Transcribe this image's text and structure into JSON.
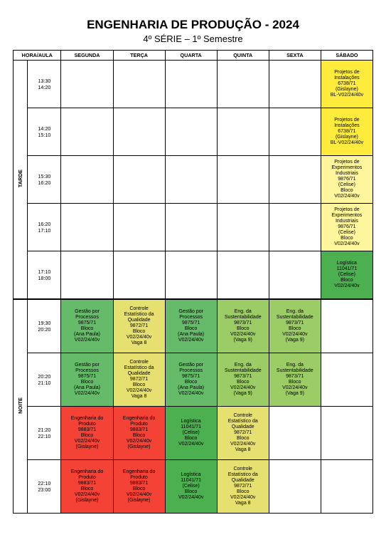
{
  "header": {
    "title": "ENGENHARIA DE PRODUÇÃO - 2024",
    "subtitle": "4º SÉRIE – 1º Semestre"
  },
  "columns": [
    "HORA/AULA",
    "SEGUNDA",
    "TERÇA",
    "QUARTA",
    "QUINTA",
    "SEXTA",
    "SÁBADO"
  ],
  "periods": {
    "tarde": "TARDE",
    "noite": "NOITE"
  },
  "times": {
    "t1": "13:30\n14:20",
    "t2": "14:20\n15:10",
    "t3": "15:30\n16:20",
    "t4": "16:20\n17:10",
    "t5": "17:10\n18:00",
    "n1": "19:30\n20:20",
    "n2": "20:20\n21:10",
    "n3": "21:20\n22:10",
    "n4": "22:10\n23:00"
  },
  "cells": {
    "sab_t1": "Projetos de\nInstalações\n6738/71\n(Gislayne)\nBL-V02/24/40v",
    "sab_t2": "Projetos de\nInstalações\n6738/71\n(Gislayne)\nBL-V02/24/40v",
    "sab_t3": "Projetos de\nExperimentos\nIndustriais\n9876/71\n(Celise)\nBloco\nV02/24/40v",
    "sab_t4": "Projetos de\nExperimentos\nIndustriais\n9876/71\n(Celise)\nBloco\nV02/24/40v",
    "sab_t5": "Logística\n11041/71\n(Celise)\nBloco\nV02/24/40v",
    "seg_n1": "Gestão por\nProcessos\n9875/71\nBloco\n(Ana Paula)\nV02/24/40v",
    "ter_n1": "Controle\nEstatístico da\nQualidade\n9872/71\nBloco\nV02/24/40v\nVaga 8",
    "qua_n1": "Gestão por\nProcessos\n9875/71\nBloco\n(Ana Paula)\nV02/24/40v",
    "qui_n1": "Eng. da\nSustentabilidade\n9873/71\nBloco\nV02/24/40v\n(Vaga 9)",
    "sex_n1": "Eng. da\nSustentabilidade\n9873/71\nBloco\nV02/24/40v\n(Vaga 9)",
    "seg_n2": "Gestão por\nProcessos\n9875/71\nBloco\n(Ana Paula)\nV02/24/40v",
    "ter_n2": "Controle\nEstatístico da\nQualidade\n9872/71\nBloco\nV02/24/40v\nVaga 8",
    "qua_n2": "Gestão por\nProcessos\n9875/71\nBloco\n(Ana Paula)\nV02/24/40v",
    "qui_n2": "Eng. da\nSustentabilidade\n9873/71\nBloco\nV02/24/40v\n(Vaga 9)",
    "sex_n2": "Eng. da\nSustentabilidade\n9873/71\nBloco\nV02/24/40v\n(Vaga 9)",
    "seg_n3": "Engenharia do\nProduto\n9883/71\nBloco\nV02/24/40v\n(Gislayne)",
    "ter_n3": "Engenharia do\nProduto\n9883/71\nBloco\nV02/24/40v\n(Gislayne)",
    "qua_n3": "Logística\n11041/71\n(Celise)\nBloco\nV02/24/40v",
    "qui_n3": "Controle\nEstatístico da\nQualidade\n9872/71\nBloco\nV02/24/40v\nVaga 8",
    "seg_n4": "Engenharia do\nProduto\n9883/71\nBloco\nV02/24/40v\n(Gislayne)",
    "ter_n4": "Engenharia do\nProduto\n9883/71\nBloco\nV02/24/40v\n(Gislayne)",
    "qua_n4": "Logística\n11041/71\n(Celise)\nBloco\nV02/24/40v",
    "qui_n4": "Controle\nEstatístico da\nQualidade\n9872/71\nBloco\nV02/24/40v\nVaga 8"
  },
  "colors": {
    "yellow": "#ffeb3b",
    "lightyellow": "#fff59d",
    "khaki": "#e6e070",
    "greenlight": "#8bc34a",
    "green": "#66bb6a",
    "greenmid": "#9ccc65",
    "greenbright": "#4caf50",
    "red": "#f44336"
  }
}
